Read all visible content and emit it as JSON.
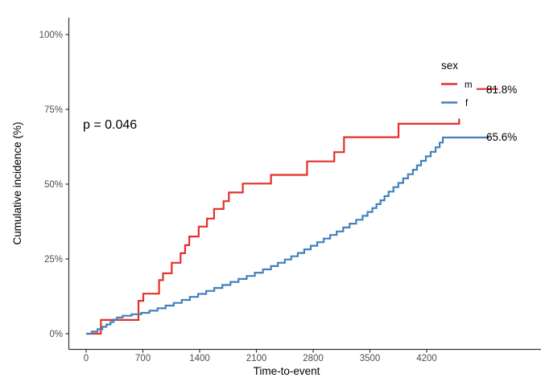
{
  "annotations": {
    "p_value": "p = 0.046",
    "end_labels": [
      {
        "series": "m",
        "text": "81.8%"
      },
      {
        "series": "f",
        "text": "65.6%"
      }
    ]
  },
  "legend": {
    "title": "sex",
    "position": "inside-top-right",
    "items": [
      {
        "label": "m",
        "color": "#e4302c"
      },
      {
        "label": "f",
        "color": "#4380bc"
      }
    ]
  },
  "axes": {
    "x": {
      "label": "Time-to-event",
      "ticks": [
        0,
        700,
        1400,
        2100,
        2800,
        3500,
        4200
      ],
      "range": [
        0,
        5600
      ]
    },
    "y": {
      "label": "Cumulative incidence (%)",
      "tick_labels": [
        "0%",
        "25%",
        "50%",
        "75%",
        "100%"
      ],
      "tick_values": [
        0,
        25,
        50,
        75,
        100
      ],
      "range": [
        0,
        100
      ]
    }
  },
  "colors": {
    "axis_line": "#333333",
    "tick_text": "#4d4d4d",
    "series_m": "#e4302c",
    "series_f": "#4380bc"
  },
  "chart_data": {
    "type": "line",
    "subtype": "step-cumulative-incidence",
    "title": "",
    "xlabel": "Time-to-event",
    "ylabel": "Cumulative incidence (%)",
    "xlim": [
      0,
      5600
    ],
    "ylim": [
      0,
      100
    ],
    "grid": false,
    "legend_position": "inside-top-right",
    "p_value": 0.046,
    "series": [
      {
        "name": "m",
        "color": "#e4302c",
        "final_value_label": "81.8%",
        "segments": [
          {
            "points": [
              [
                0,
                0
              ],
              [
                182,
                4.6
              ],
              [
                645,
                11.0
              ],
              [
                705,
                13.4
              ],
              [
                900,
                17.9
              ],
              [
                948,
                20.2
              ],
              [
                1055,
                23.7
              ],
              [
                1165,
                26.9
              ],
              [
                1220,
                29.6
              ],
              [
                1272,
                32.5
              ],
              [
                1388,
                35.8
              ],
              [
                1490,
                38.5
              ],
              [
                1578,
                41.7
              ],
              [
                1695,
                44.3
              ],
              [
                1760,
                47.2
              ],
              [
                1932,
                50.2
              ],
              [
                2280,
                53.1
              ],
              [
                2725,
                57.6
              ],
              [
                3060,
                60.7
              ],
              [
                3180,
                65.7
              ],
              [
                3852,
                70.2
              ],
              [
                4600,
                71.9
              ]
            ]
          },
          {
            "points": [
              [
                4815,
                81.8
              ],
              [
                5080,
                81.8
              ]
            ]
          }
        ]
      },
      {
        "name": "f",
        "color": "#4380bc",
        "final_value_label": "65.6%",
        "segments": [
          {
            "points": [
              [
                0,
                0
              ],
              [
                70,
                0.7
              ],
              [
                140,
                1.5
              ],
              [
                200,
                2.3
              ],
              [
                250,
                3.1
              ],
              [
                300,
                3.9
              ],
              [
                340,
                4.7
              ],
              [
                380,
                5.4
              ],
              [
                450,
                6.0
              ],
              [
                560,
                6.5
              ],
              [
                680,
                7.0
              ],
              [
                780,
                7.7
              ],
              [
                880,
                8.5
              ],
              [
                980,
                9.4
              ],
              [
                1080,
                10.3
              ],
              [
                1180,
                11.3
              ],
              [
                1280,
                12.3
              ],
              [
                1380,
                13.3
              ],
              [
                1480,
                14.3
              ],
              [
                1580,
                15.3
              ],
              [
                1680,
                16.3
              ],
              [
                1780,
                17.3
              ],
              [
                1880,
                18.3
              ],
              [
                1980,
                19.3
              ],
              [
                2080,
                20.4
              ],
              [
                2180,
                21.5
              ],
              [
                2280,
                22.6
              ],
              [
                2365,
                23.7
              ],
              [
                2450,
                24.8
              ],
              [
                2530,
                25.9
              ],
              [
                2610,
                27.0
              ],
              [
                2690,
                28.2
              ],
              [
                2770,
                29.4
              ],
              [
                2850,
                30.6
              ],
              [
                2930,
                31.8
              ],
              [
                3010,
                33.0
              ],
              [
                3090,
                34.2
              ],
              [
                3170,
                35.5
              ],
              [
                3250,
                36.8
              ],
              [
                3330,
                38.1
              ],
              [
                3410,
                39.4
              ],
              [
                3470,
                40.7
              ],
              [
                3530,
                42.0
              ],
              [
                3580,
                43.3
              ],
              [
                3630,
                44.6
              ],
              [
                3680,
                46.0
              ],
              [
                3730,
                47.5
              ],
              [
                3790,
                49.0
              ],
              [
                3850,
                50.4
              ],
              [
                3910,
                51.9
              ],
              [
                3970,
                53.3
              ],
              [
                4030,
                54.8
              ],
              [
                4080,
                56.3
              ],
              [
                4130,
                57.8
              ],
              [
                4190,
                59.3
              ],
              [
                4250,
                60.8
              ],
              [
                4310,
                62.3
              ],
              [
                4360,
                63.9
              ],
              [
                4400,
                65.6
              ],
              [
                4975,
                65.6
              ]
            ]
          }
        ]
      }
    ]
  }
}
